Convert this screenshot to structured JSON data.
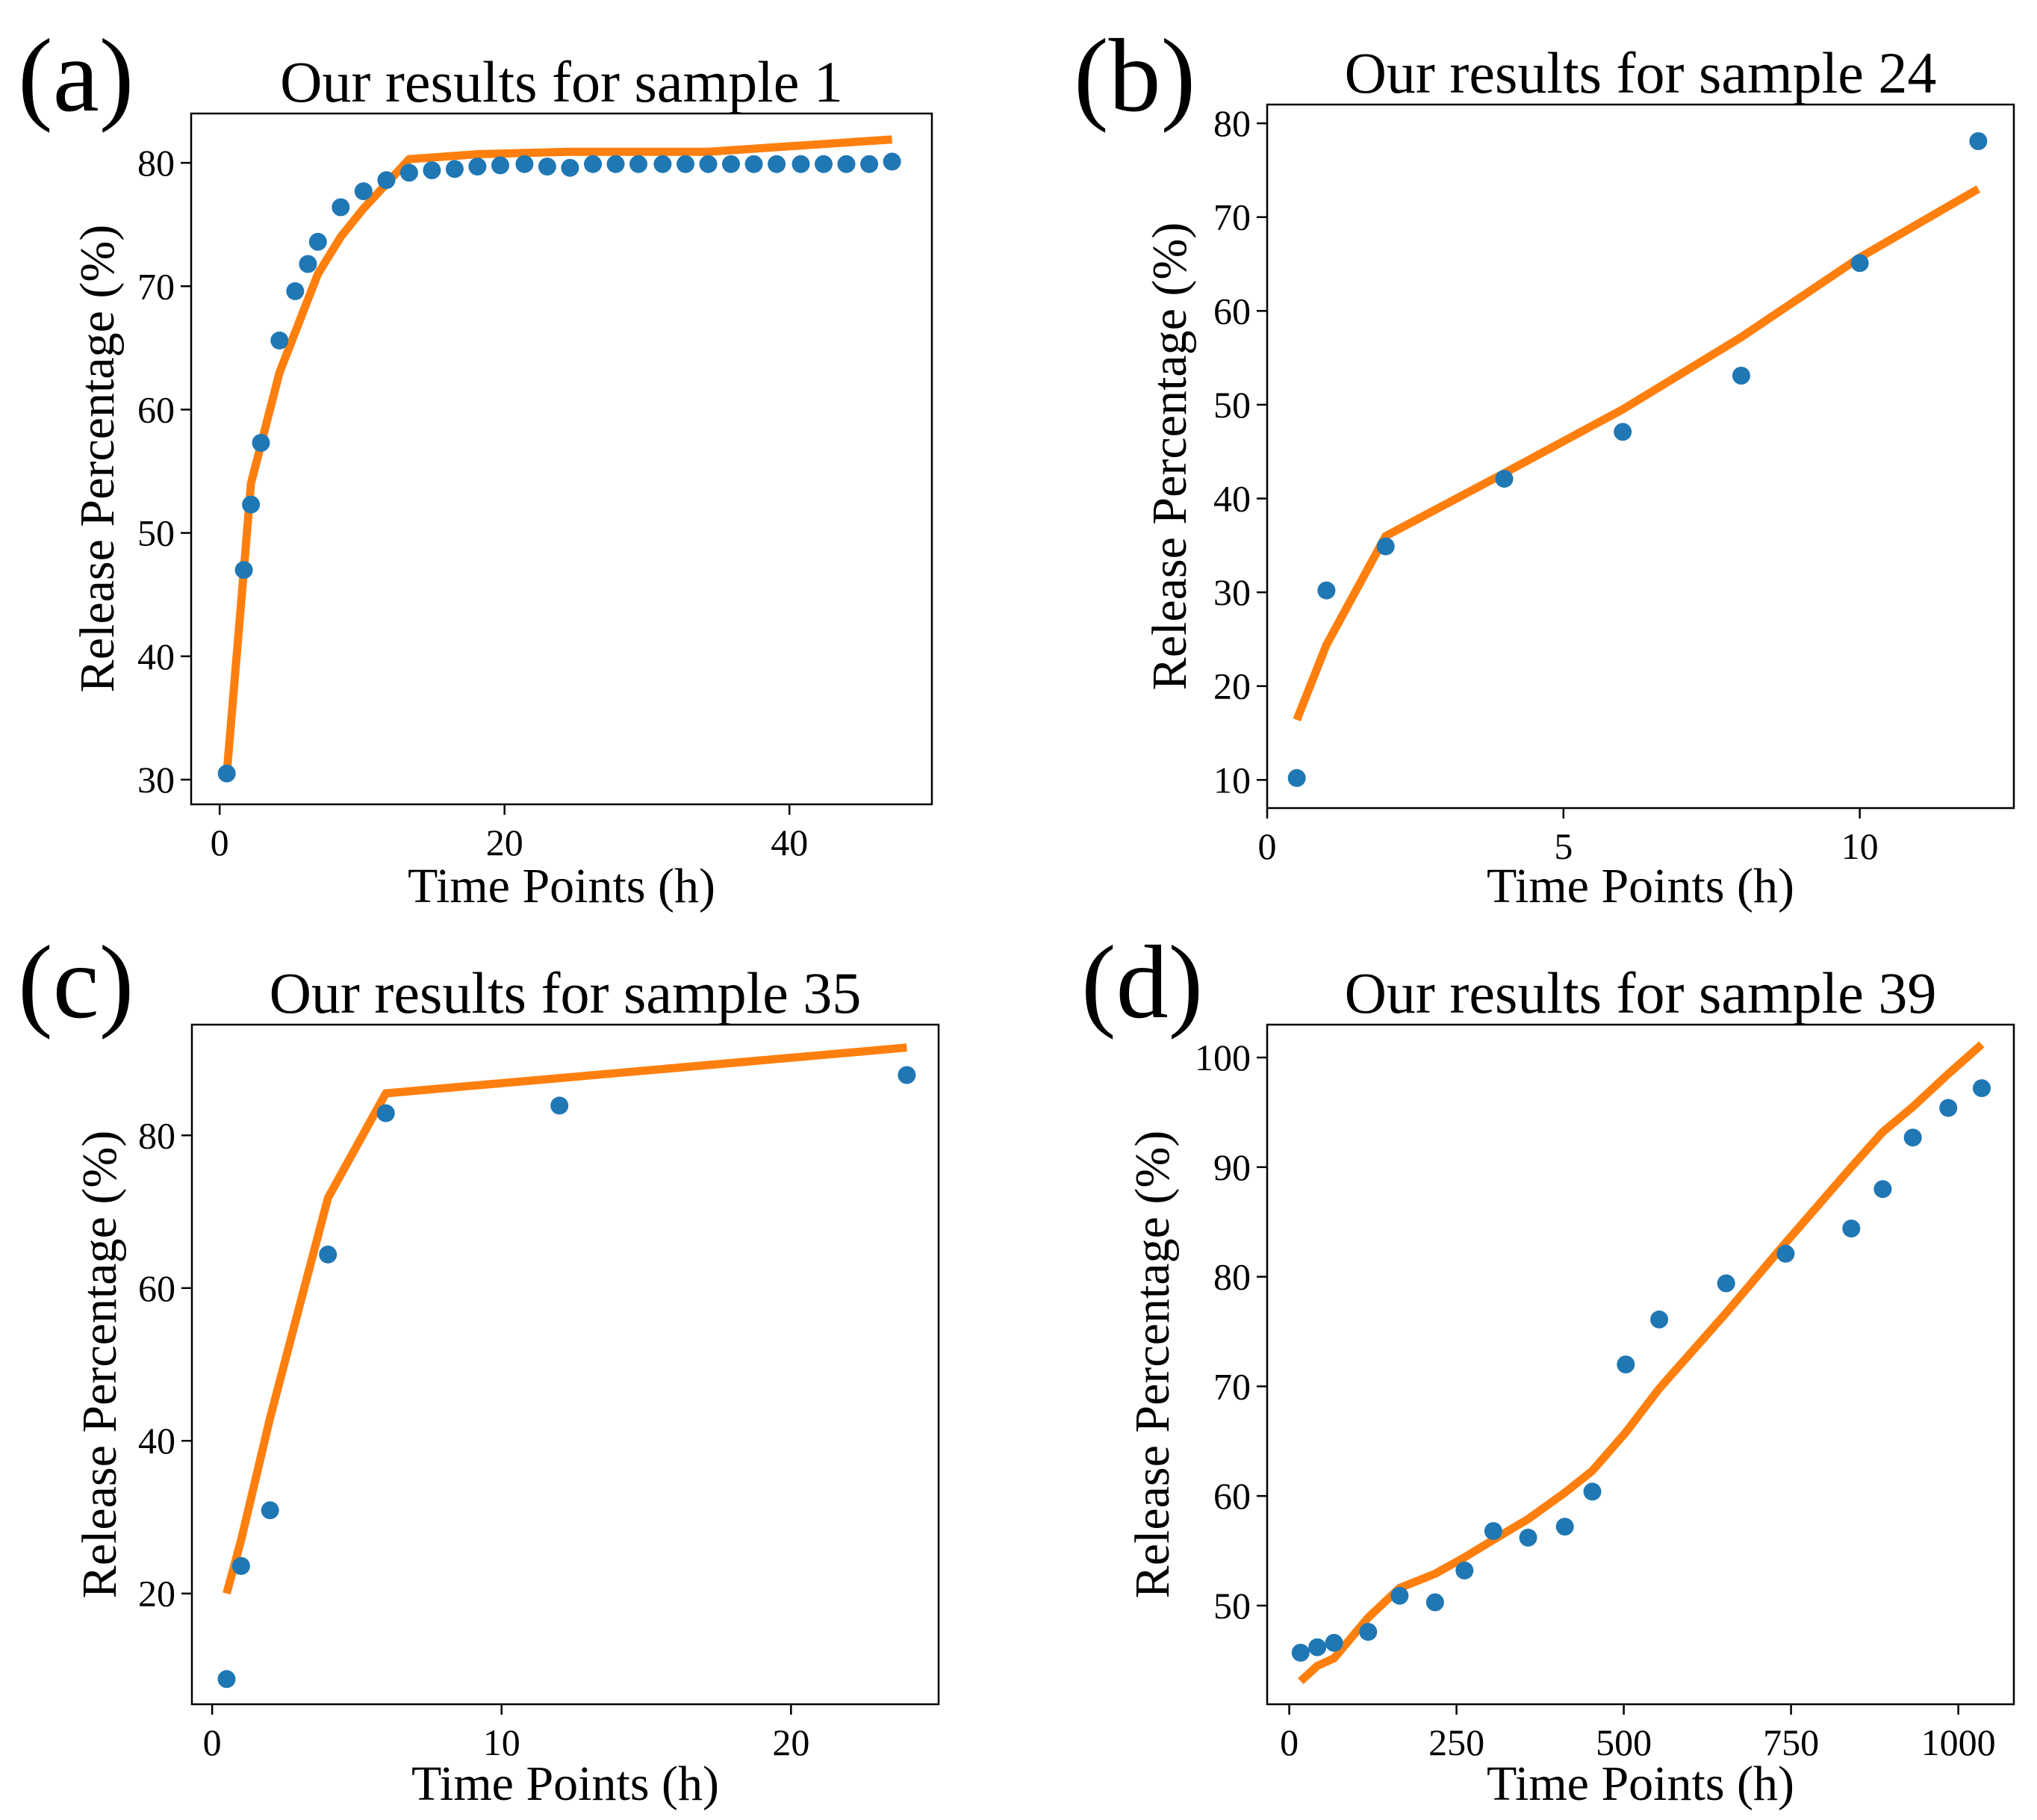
{
  "figure": {
    "description_labels": [
      "(a)",
      "(b)",
      "(c)",
      "(d)"
    ]
  },
  "colors": {
    "points": "#1f77b4",
    "fit_line": "#ff7f0e",
    "frame": "#000000",
    "background": "#ffffff"
  },
  "chart_data": [
    {
      "panel_label": "(a)",
      "type": "scatter",
      "title": "Our results for sample 1",
      "xlabel": "Time Points (h)",
      "ylabel": "Release Percentage (%)",
      "xlim": [
        -2,
        50
      ],
      "ylim": [
        28,
        84
      ],
      "xticks": [
        0,
        20,
        40
      ],
      "yticks": [
        30,
        40,
        50,
        60,
        70,
        80
      ],
      "grid": false,
      "series": [
        {
          "name": "measured",
          "kind": "scatter",
          "color": "#1f77b4",
          "x": [
            0.5,
            1.7,
            2.2,
            2.9,
            4.2,
            5.3,
            6.2,
            6.9,
            8.5,
            10.1,
            11.7,
            13.3,
            14.9,
            16.5,
            18.1,
            19.7,
            21.4,
            23.0,
            24.6,
            26.2,
            27.8,
            29.4,
            31.1,
            32.7,
            34.3,
            35.9,
            37.5,
            39.1,
            40.8,
            42.4,
            44.0,
            45.6,
            47.2
          ],
          "y": [
            30.5,
            47.0,
            52.3,
            57.3,
            65.6,
            69.6,
            71.8,
            73.6,
            76.4,
            77.7,
            78.6,
            79.2,
            79.4,
            79.5,
            79.7,
            79.8,
            79.9,
            79.7,
            79.6,
            79.9,
            79.9,
            79.9,
            79.9,
            79.9,
            79.9,
            79.9,
            79.9,
            79.9,
            79.9,
            79.9,
            79.9,
            79.9,
            80.1
          ]
        },
        {
          "name": "fit",
          "kind": "line",
          "color": "#ff7f0e",
          "x": [
            0.5,
            1.7,
            2.2,
            4.2,
            6.9,
            8.5,
            10.1,
            11.7,
            13.3,
            18.1,
            24.6,
            29.4,
            34.3,
            47.2
          ],
          "y": [
            30.5,
            47.0,
            54.0,
            63.0,
            71.0,
            74.0,
            76.3,
            78.3,
            80.3,
            80.7,
            80.9,
            80.9,
            80.9,
            81.9
          ]
        }
      ]
    },
    {
      "panel_label": "(b)",
      "type": "scatter",
      "title": "Our results for sample 24",
      "xlabel": "Time Points (h)",
      "ylabel": "Release Percentage (%)",
      "xlim": [
        0,
        12.6
      ],
      "ylim": [
        7,
        82
      ],
      "xticks": [
        0,
        5,
        10
      ],
      "yticks": [
        10,
        20,
        30,
        40,
        50,
        60,
        70,
        80
      ],
      "grid": false,
      "series": [
        {
          "name": "measured",
          "kind": "scatter",
          "color": "#1f77b4",
          "x": [
            0.5,
            1,
            2,
            4,
            6,
            8,
            10,
            12
          ],
          "y": [
            10.2,
            30.2,
            34.9,
            42.1,
            47.1,
            53.1,
            65.1,
            78.1
          ]
        },
        {
          "name": "fit",
          "kind": "line",
          "color": "#ff7f0e",
          "x": [
            0.5,
            1,
            2,
            4,
            6,
            8,
            10,
            12
          ],
          "y": [
            16.4,
            24.4,
            36.0,
            42.7,
            49.5,
            57.2,
            65.7,
            73.0
          ]
        }
      ]
    },
    {
      "panel_label": "(c)",
      "type": "scatter",
      "title": "Our results for sample 35",
      "xlabel": "Time Points (h)",
      "ylabel": "Release Percentage (%)",
      "xlim": [
        -0.7,
        25.1
      ],
      "ylim": [
        5.5,
        94.5
      ],
      "xticks": [
        0,
        10,
        20
      ],
      "yticks": [
        20,
        40,
        60,
        80
      ],
      "grid": false,
      "series": [
        {
          "name": "measured",
          "kind": "scatter",
          "color": "#1f77b4",
          "x": [
            0.5,
            1,
            2,
            4,
            6,
            12,
            24
          ],
          "y": [
            8.8,
            23.6,
            30.9,
            64.4,
            82.9,
            83.9,
            87.9
          ]
        },
        {
          "name": "fit",
          "kind": "line",
          "color": "#ff7f0e",
          "x": [
            0.5,
            1,
            2,
            4,
            6,
            12,
            24
          ],
          "y": [
            20.0,
            27.0,
            43.0,
            71.8,
            85.5,
            87.5,
            91.5
          ]
        }
      ]
    },
    {
      "panel_label": "(d)",
      "type": "scatter",
      "title": "Our results for sample 39",
      "xlabel": "Time Points (h)",
      "ylabel": "Release Percentage (%)",
      "xlim": [
        -33,
        1083
      ],
      "ylim": [
        41,
        103
      ],
      "xticks": [
        0,
        250,
        500,
        750,
        1000
      ],
      "yticks": [
        50,
        60,
        70,
        80,
        90,
        100
      ],
      "grid": false,
      "series": [
        {
          "name": "measured",
          "kind": "scatter",
          "color": "#1f77b4",
          "x": [
            17,
            42,
            67,
            118,
            165,
            218,
            262,
            305,
            357,
            412,
            453,
            503,
            553,
            653,
            742,
            840,
            887,
            932,
            985,
            1035
          ],
          "y": [
            45.7,
            46.2,
            46.6,
            47.6,
            50.9,
            50.3,
            53.2,
            56.8,
            56.2,
            57.2,
            60.4,
            72.0,
            76.1,
            79.4,
            82.1,
            84.4,
            88.0,
            92.7,
            95.4,
            97.2
          ]
        },
        {
          "name": "fit",
          "kind": "line",
          "color": "#ff7f0e",
          "x": [
            17,
            42,
            67,
            118,
            165,
            218,
            262,
            305,
            357,
            412,
            453,
            503,
            553,
            653,
            742,
            840,
            887,
            932,
            985,
            1035
          ],
          "y": [
            43.1,
            44.5,
            45.2,
            48.9,
            51.6,
            52.9,
            54.4,
            56.0,
            57.9,
            60.3,
            62.3,
            65.8,
            69.8,
            76.7,
            83.1,
            90.0,
            93.2,
            95.5,
            98.5,
            101.2
          ]
        }
      ]
    }
  ]
}
